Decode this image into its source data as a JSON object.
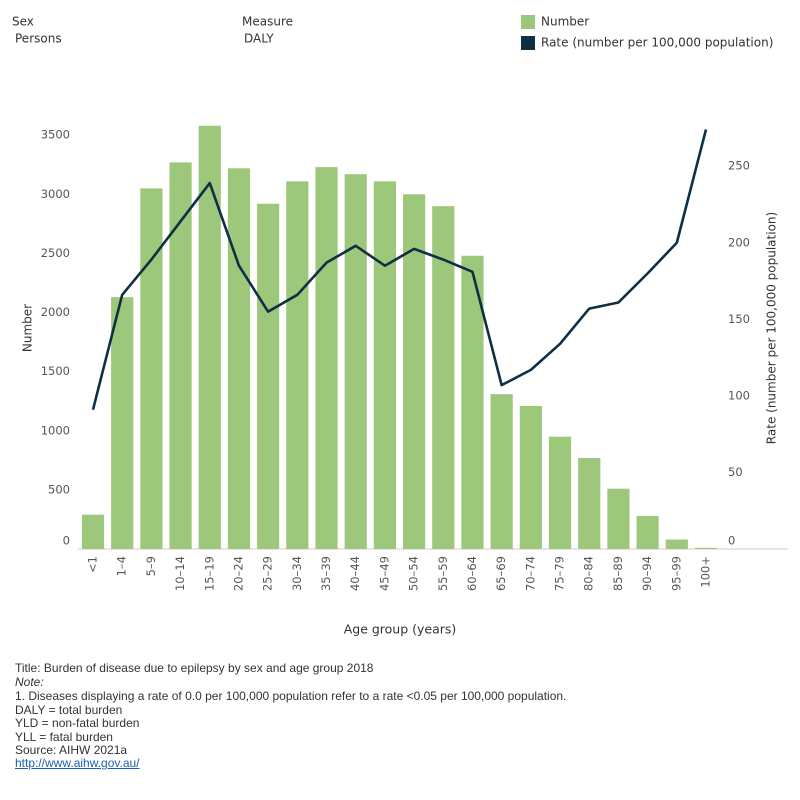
{
  "filters": [
    {
      "label": "Sex",
      "value": "Persons"
    },
    {
      "label": "Measure",
      "value": "DALY"
    }
  ],
  "chart_data": {
    "type": "bar_line",
    "x_label": "Age group (years)",
    "y_label": "Number",
    "y2_label": "Rate (number per 100,000 population)",
    "categories": [
      "<1",
      "1–4",
      "5–9",
      "10–14",
      "15–19",
      "20–24",
      "25–29",
      "30–34",
      "35–39",
      "40–44",
      "45–49",
      "50–54",
      "55–59",
      "60–64",
      "65–69",
      "70–74",
      "75–79",
      "80–84",
      "85–89",
      "90–94",
      "95–99",
      "100+"
    ],
    "series": [
      {
        "name": "Number",
        "type": "bar",
        "color": "#9dc77a",
        "values": [
          290,
          2130,
          3050,
          3270,
          3580,
          3220,
          2920,
          3110,
          3230,
          3170,
          3110,
          3000,
          2900,
          2480,
          1310,
          1210,
          950,
          770,
          510,
          280,
          80,
          10
        ]
      },
      {
        "name": "Rate (number per 100,000 population)",
        "type": "line",
        "axis": "y2",
        "color": "#0e2f44",
        "values": [
          91,
          166,
          189,
          214,
          239,
          185,
          155,
          166,
          187,
          198,
          185,
          196,
          189,
          181,
          107,
          117,
          134,
          157,
          161,
          180,
          200,
          274
        ]
      }
    ],
    "ylim": [
      0,
      3730
    ],
    "yticks": [
      0,
      500,
      1000,
      1500,
      2000,
      2500,
      3000,
      3500
    ],
    "y2lim": [
      0,
      288
    ],
    "y2ticks": [
      0,
      50,
      100,
      150,
      200,
      250
    ],
    "grid": false
  },
  "footer": {
    "title": "Title: Burden of disease due to epilepsy by sex and age group 2018",
    "note_heading": "Note:",
    "lines": [
      "1. Diseases displaying a rate of 0.0 per 100,000 population refer to a rate <0.05 per 100,000 population.",
      "DALY = total burden",
      "YLD = non-fatal burden",
      "YLL = fatal burden",
      "Source: AIHW 2021a"
    ],
    "link": "http://www.aihw.gov.au/"
  }
}
